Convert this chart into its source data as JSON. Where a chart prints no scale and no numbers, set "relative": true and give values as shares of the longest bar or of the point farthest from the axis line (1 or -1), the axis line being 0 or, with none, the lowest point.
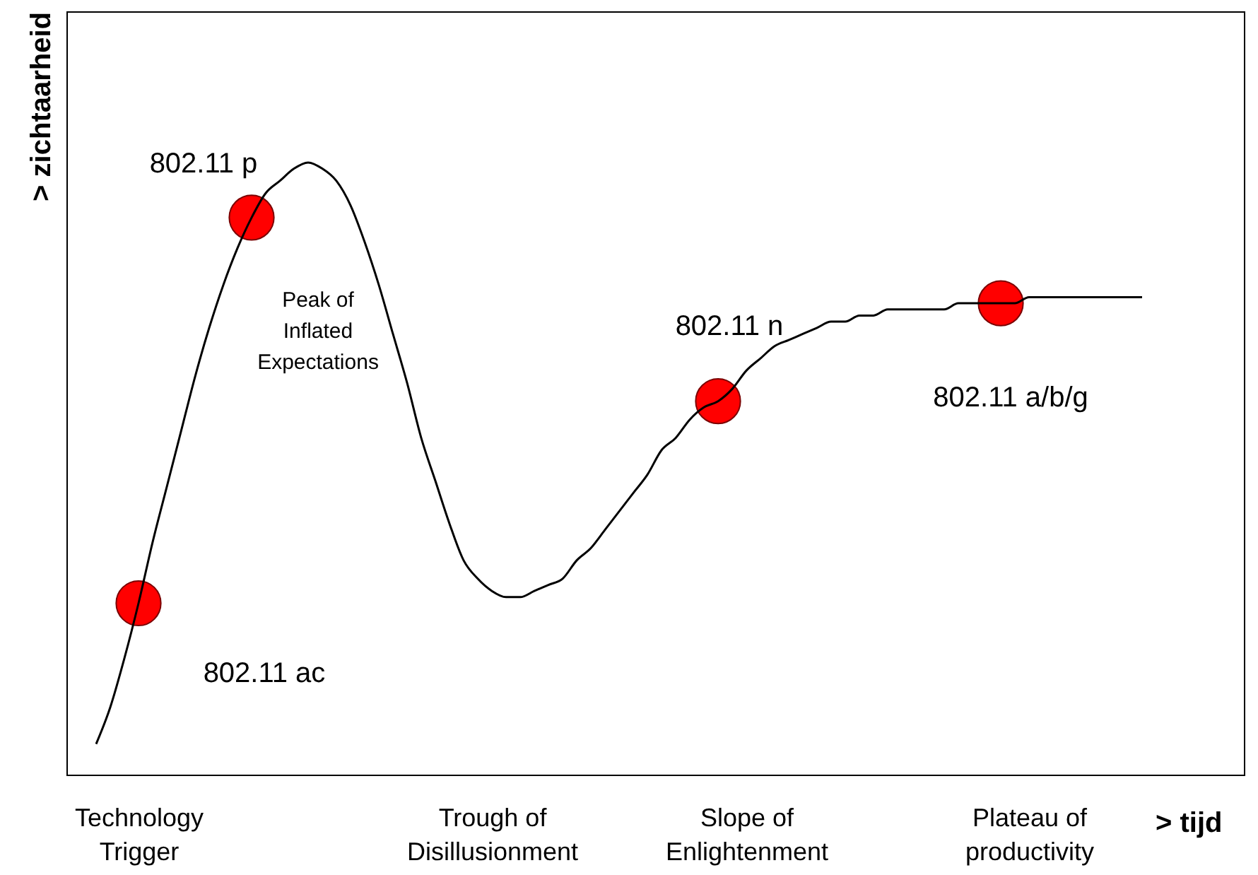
{
  "chart_data": {
    "type": "line",
    "relative": true,
    "ylabel": "> zichtaarheid",
    "xlabel": "> tijd",
    "categories": [
      null,
      null,
      null,
      "Technology Trigger",
      null,
      null,
      null,
      null,
      null,
      null,
      null,
      null,
      null,
      null,
      null,
      null,
      null,
      null,
      null,
      null,
      null,
      null,
      null,
      null,
      null,
      null,
      null,
      null,
      "Trough of Disillusionment",
      null,
      null,
      null,
      null,
      null,
      null,
      null,
      null,
      null,
      null,
      null,
      null,
      null,
      null,
      null,
      null,
      null,
      "Slope of Enlightenment",
      null,
      null,
      null,
      null,
      null,
      null,
      null,
      null,
      null,
      null,
      null,
      null,
      null,
      null,
      null,
      null,
      null,
      null,
      null,
      "Plateau of productivity",
      null,
      null,
      null,
      null,
      null,
      null,
      null,
      null
    ],
    "series": [
      {
        "marker": "none",
        "color": "#000000",
        "values": [
          0.05,
          0.11,
          0.19,
          0.28,
          0.38,
          0.47,
          0.56,
          0.65,
          0.73,
          0.8,
          0.86,
          0.91,
          0.95,
          0.97,
          0.99,
          1,
          0.99,
          0.97,
          0.93,
          0.87,
          0.8,
          0.72,
          0.64,
          0.55,
          0.48,
          0.41,
          0.35,
          0.32,
          0.3,
          0.29,
          0.29,
          0.3,
          0.31,
          0.32,
          0.35,
          0.37,
          0.4,
          0.43,
          0.46,
          0.49,
          0.53,
          0.55,
          0.58,
          0.6,
          0.61,
          0.63,
          0.66,
          0.68,
          0.7,
          0.71,
          0.72,
          0.73,
          0.74,
          0.74,
          0.75,
          0.75,
          0.76,
          0.76,
          0.76,
          0.76,
          0.76,
          0.77,
          0.77,
          0.77,
          0.77,
          0.77,
          0.78,
          0.78,
          0.78,
          0.78,
          0.78,
          0.78,
          0.78,
          0.78,
          0.78
        ]
      },
      {
        "type": "scatter",
        "name": "802.11 ac",
        "marker": "circle",
        "color": "#ff0000",
        "values": [
          null,
          null,
          null,
          0.28,
          null,
          null,
          null,
          null,
          null,
          null,
          null,
          null,
          null,
          null,
          null,
          null,
          null,
          null,
          null,
          null,
          null,
          null,
          null,
          null,
          null,
          null,
          null,
          null,
          null,
          null,
          null,
          null,
          null,
          null,
          null,
          null,
          null,
          null,
          null,
          null,
          null,
          null,
          null,
          null,
          null,
          null,
          null,
          null,
          null,
          null,
          null,
          null,
          null,
          null,
          null,
          null,
          null,
          null,
          null,
          null,
          null,
          null,
          null,
          null,
          null,
          null,
          null,
          null,
          null,
          null,
          null,
          null,
          null,
          null,
          null
        ]
      },
      {
        "type": "scatter",
        "name": "802.11 p",
        "marker": "circle",
        "color": "#ff0000",
        "values": [
          null,
          null,
          null,
          null,
          null,
          null,
          null,
          null,
          null,
          null,
          null,
          0.91,
          null,
          null,
          null,
          null,
          null,
          null,
          null,
          null,
          null,
          null,
          null,
          null,
          null,
          null,
          null,
          null,
          null,
          null,
          null,
          null,
          null,
          null,
          null,
          null,
          null,
          null,
          null,
          null,
          null,
          null,
          null,
          null,
          null,
          null,
          null,
          null,
          null,
          null,
          null,
          null,
          null,
          null,
          null,
          null,
          null,
          null,
          null,
          null,
          null,
          null,
          null,
          null,
          null,
          null,
          null,
          null,
          null,
          null,
          null,
          null,
          null,
          null,
          null
        ]
      },
      {
        "type": "scatter",
        "name": "802.11 n",
        "marker": "circle",
        "color": "#ff0000",
        "values": [
          null,
          null,
          null,
          null,
          null,
          null,
          null,
          null,
          null,
          null,
          null,
          null,
          null,
          null,
          null,
          null,
          null,
          null,
          null,
          null,
          null,
          null,
          null,
          null,
          null,
          null,
          null,
          null,
          null,
          null,
          null,
          null,
          null,
          null,
          null,
          null,
          null,
          null,
          null,
          null,
          null,
          null,
          null,
          null,
          0.61,
          null,
          null,
          null,
          null,
          null,
          null,
          null,
          null,
          null,
          null,
          null,
          null,
          null,
          null,
          null,
          null,
          null,
          null,
          null,
          null,
          null,
          null,
          null,
          null,
          null,
          null,
          null,
          null,
          null,
          null
        ]
      },
      {
        "type": "scatter",
        "name": "802.11 a/b/g",
        "marker": "circle",
        "color": "#ff0000",
        "values": [
          null,
          null,
          null,
          null,
          null,
          null,
          null,
          null,
          null,
          null,
          null,
          null,
          null,
          null,
          null,
          null,
          null,
          null,
          null,
          null,
          null,
          null,
          null,
          null,
          null,
          null,
          null,
          null,
          null,
          null,
          null,
          null,
          null,
          null,
          null,
          null,
          null,
          null,
          null,
          null,
          null,
          null,
          null,
          null,
          null,
          null,
          null,
          null,
          null,
          null,
          null,
          null,
          null,
          null,
          null,
          null,
          null,
          null,
          null,
          null,
          null,
          null,
          null,
          null,
          0.77,
          null,
          null,
          null,
          null,
          null,
          null,
          null,
          null,
          null,
          null
        ]
      }
    ],
    "annotations": [
      "Peak of Inflated Expectations"
    ]
  }
}
